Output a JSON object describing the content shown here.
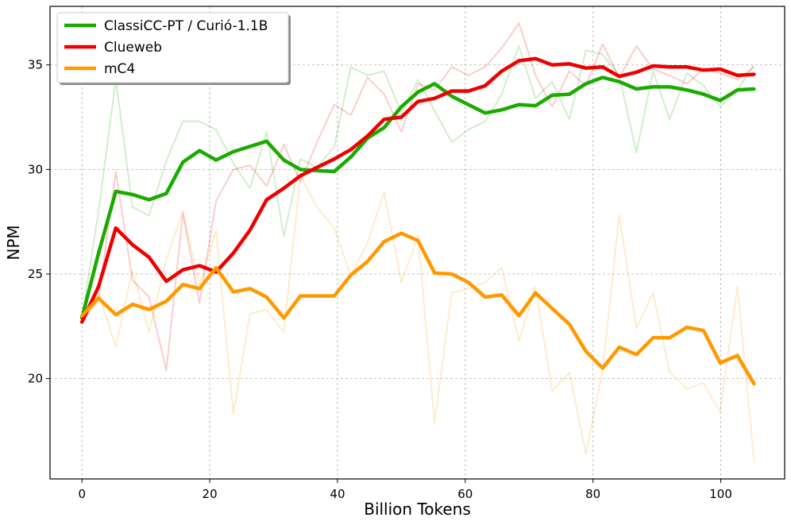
{
  "chart_data": {
    "type": "line",
    "xlabel": "Billion Tokens",
    "ylabel": "NPM",
    "xlim": [
      -5,
      110
    ],
    "ylim": [
      15.2,
      37.8
    ],
    "xticks": [
      0,
      20,
      40,
      60,
      80,
      100
    ],
    "yticks": [
      20,
      25,
      30,
      35
    ],
    "grid": true,
    "legend_position": "top-left",
    "x": [
      0,
      2.6,
      5.3,
      7.9,
      10.5,
      13.2,
      15.8,
      18.4,
      21.0,
      23.7,
      26.3,
      28.9,
      31.6,
      34.2,
      36.8,
      39.5,
      42.1,
      44.7,
      47.3,
      50.0,
      52.6,
      55.2,
      57.9,
      60.5,
      63.1,
      65.7,
      68.4,
      71.0,
      73.6,
      76.3,
      78.9,
      81.5,
      84.1,
      86.8,
      89.4,
      92.0,
      94.7,
      97.3,
      99.9,
      102.6,
      105.2
    ],
    "series": [
      {
        "name": "ClassiCC-PT / Curió-1.1B",
        "color": "#1aaa00",
        "smoothed": [
          22.9,
          26.0,
          28.95,
          28.8,
          28.55,
          28.85,
          30.35,
          30.9,
          30.45,
          30.85,
          31.1,
          31.35,
          30.45,
          30.0,
          29.95,
          29.9,
          30.6,
          31.5,
          32.0,
          33.0,
          33.7,
          34.1,
          33.5,
          33.1,
          32.7,
          32.85,
          33.1,
          33.05,
          33.55,
          33.6,
          34.1,
          34.4,
          34.2,
          33.85,
          33.95,
          33.95,
          33.8,
          33.6,
          33.3,
          33.8,
          33.85
        ],
        "raw": [
          22.9,
          28.0,
          34.3,
          28.2,
          27.8,
          30.4,
          32.3,
          32.3,
          31.9,
          30.3,
          29.1,
          31.8,
          26.8,
          30.5,
          30.1,
          31.1,
          34.9,
          34.5,
          34.7,
          32.7,
          34.3,
          32.8,
          31.3,
          31.9,
          32.3,
          33.6,
          35.9,
          33.4,
          34.2,
          32.4,
          35.7,
          35.5,
          34.5,
          30.8,
          34.7,
          32.4,
          34.6,
          34.0,
          33.0,
          33.8,
          35.0
        ]
      },
      {
        "name": "Clueweb",
        "color": "#ee0000",
        "smoothed": [
          22.7,
          24.4,
          27.2,
          26.4,
          25.8,
          24.65,
          25.2,
          25.4,
          25.1,
          26.0,
          27.1,
          28.55,
          29.1,
          29.7,
          30.1,
          30.5,
          30.95,
          31.6,
          32.4,
          32.5,
          33.25,
          33.4,
          33.75,
          33.75,
          34.0,
          34.7,
          35.2,
          35.3,
          35.0,
          35.05,
          34.85,
          34.9,
          34.45,
          34.65,
          34.95,
          34.9,
          34.9,
          34.75,
          34.8,
          34.5,
          34.55
        ],
        "raw": [
          22.7,
          23.8,
          29.9,
          24.7,
          23.9,
          20.4,
          27.9,
          23.6,
          28.5,
          30.0,
          30.2,
          29.2,
          31.2,
          29.4,
          31.3,
          33.1,
          32.6,
          34.4,
          33.6,
          31.8,
          34.1,
          33.8,
          34.9,
          34.5,
          34.9,
          35.8,
          37.0,
          34.5,
          33.0,
          34.7,
          34.0,
          36.0,
          34.4,
          35.9,
          34.8,
          34.5,
          34.1,
          34.8,
          34.6,
          34.3,
          34.9
        ]
      },
      {
        "name": "mC4",
        "color": "#ff9900",
        "smoothed": [
          23.0,
          23.85,
          23.05,
          23.55,
          23.3,
          23.7,
          24.5,
          24.3,
          25.3,
          24.15,
          24.3,
          23.9,
          22.9,
          23.95,
          23.95,
          23.95,
          24.95,
          25.6,
          26.55,
          26.95,
          26.6,
          25.05,
          25.0,
          24.6,
          23.9,
          24.0,
          23.0,
          24.1,
          23.35,
          22.6,
          21.3,
          20.5,
          21.5,
          21.15,
          21.95,
          21.95,
          22.45,
          22.3,
          20.75,
          21.1,
          19.75
        ],
        "raw": [
          23.0,
          24.1,
          21.5,
          25.2,
          22.2,
          25.7,
          28.0,
          24.5,
          27.1,
          18.3,
          23.1,
          23.3,
          22.2,
          29.7,
          28.2,
          27.2,
          24.9,
          26.5,
          28.9,
          24.6,
          26.8,
          17.9,
          24.1,
          24.3,
          24.6,
          25.3,
          21.8,
          24.4,
          19.4,
          20.3,
          16.4,
          20.4,
          27.8,
          22.4,
          24.1,
          20.3,
          19.5,
          19.8,
          18.4,
          24.4,
          16.1
        ]
      }
    ]
  }
}
